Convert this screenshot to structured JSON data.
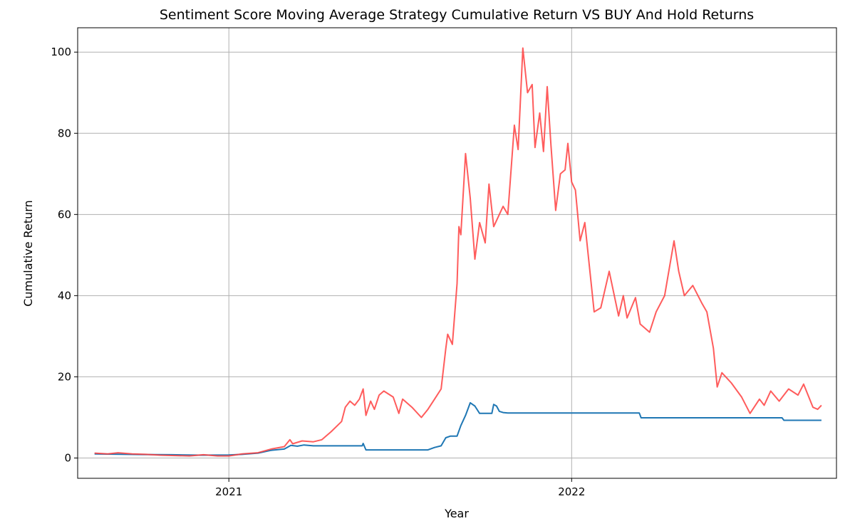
{
  "chart_data": {
    "type": "line",
    "title": "Sentiment Score Moving Average Strategy Cumulative Return VS BUY And Hold Returns",
    "xlabel": "Year",
    "ylabel": "Cumulative Return",
    "xlim": [
      "2020-07-24",
      "2022-10-10"
    ],
    "ylim": [
      -5,
      106
    ],
    "grid": true,
    "x_ticks": [
      {
        "value": "2021-01-01",
        "label": "2021"
      },
      {
        "value": "2022-01-01",
        "label": "2022"
      }
    ],
    "y_ticks": [
      0,
      20,
      40,
      60,
      80,
      100
    ],
    "series": [
      {
        "color": "#1f77b4",
        "points": [
          [
            "2020-08-11",
            1.0
          ],
          [
            "2020-09-01",
            0.95
          ],
          [
            "2020-10-01",
            0.85
          ],
          [
            "2020-11-01",
            0.8
          ],
          [
            "2020-12-01",
            0.7
          ],
          [
            "2021-01-01",
            0.75
          ],
          [
            "2021-01-15",
            0.9
          ],
          [
            "2021-02-01",
            1.2
          ],
          [
            "2021-02-15",
            1.9
          ],
          [
            "2021-03-01",
            2.2
          ],
          [
            "2021-03-08",
            3.1
          ],
          [
            "2021-03-15",
            2.9
          ],
          [
            "2021-03-22",
            3.2
          ],
          [
            "2021-04-01",
            3.0
          ],
          [
            "2021-05-23",
            3.0
          ],
          [
            "2021-05-24",
            3.6
          ],
          [
            "2021-05-27",
            2.0
          ],
          [
            "2021-08-01",
            2.0
          ],
          [
            "2021-08-08",
            2.6
          ],
          [
            "2021-08-15",
            3.0
          ],
          [
            "2021-08-20",
            5.0
          ],
          [
            "2021-08-25",
            5.4
          ],
          [
            "2021-09-01",
            5.4
          ],
          [
            "2021-09-05",
            8.0
          ],
          [
            "2021-09-10",
            10.5
          ],
          [
            "2021-09-15",
            13.6
          ],
          [
            "2021-09-20",
            12.8
          ],
          [
            "2021-09-25",
            11.0
          ],
          [
            "2021-10-01",
            11.0
          ],
          [
            "2021-10-08",
            11.0
          ],
          [
            "2021-10-10",
            13.2
          ],
          [
            "2021-10-13",
            12.8
          ],
          [
            "2021-10-16",
            11.5
          ],
          [
            "2021-10-20",
            11.2
          ],
          [
            "2021-10-25",
            11.1
          ],
          [
            "2022-03-14",
            11.1
          ],
          [
            "2022-03-16",
            9.9
          ],
          [
            "2022-08-13",
            9.9
          ],
          [
            "2022-08-15",
            9.3
          ],
          [
            "2022-09-24",
            9.3
          ]
        ]
      },
      {
        "color": "#ff4040",
        "points": [
          [
            "2020-08-11",
            1.2
          ],
          [
            "2020-08-25",
            1.0
          ],
          [
            "2020-09-05",
            1.3
          ],
          [
            "2020-09-20",
            1.0
          ],
          [
            "2020-10-05",
            0.9
          ],
          [
            "2020-10-20",
            0.7
          ],
          [
            "2020-11-05",
            0.6
          ],
          [
            "2020-11-20",
            0.5
          ],
          [
            "2020-12-05",
            0.8
          ],
          [
            "2020-12-20",
            0.5
          ],
          [
            "2021-01-01",
            0.5
          ],
          [
            "2021-01-15",
            1.0
          ],
          [
            "2021-02-01",
            1.3
          ],
          [
            "2021-02-15",
            2.2
          ],
          [
            "2021-03-01",
            2.8
          ],
          [
            "2021-03-07",
            4.5
          ],
          [
            "2021-03-10",
            3.5
          ],
          [
            "2021-03-20",
            4.2
          ],
          [
            "2021-04-01",
            4.0
          ],
          [
            "2021-04-10",
            4.5
          ],
          [
            "2021-04-20",
            6.5
          ],
          [
            "2021-05-01",
            9.0
          ],
          [
            "2021-05-05",
            12.5
          ],
          [
            "2021-05-10",
            14.0
          ],
          [
            "2021-05-15",
            13.0
          ],
          [
            "2021-05-20",
            14.5
          ],
          [
            "2021-05-24",
            17.0
          ],
          [
            "2021-05-27",
            10.5
          ],
          [
            "2021-06-01",
            14.0
          ],
          [
            "2021-06-05",
            12.0
          ],
          [
            "2021-06-10",
            15.5
          ],
          [
            "2021-06-15",
            16.5
          ],
          [
            "2021-06-25",
            15.0
          ],
          [
            "2021-07-01",
            11.0
          ],
          [
            "2021-07-05",
            14.5
          ],
          [
            "2021-07-15",
            12.5
          ],
          [
            "2021-07-25",
            10.0
          ],
          [
            "2021-08-01",
            12.0
          ],
          [
            "2021-08-08",
            14.5
          ],
          [
            "2021-08-15",
            17.0
          ],
          [
            "2021-08-20",
            27.0
          ],
          [
            "2021-08-22",
            30.5
          ],
          [
            "2021-08-27",
            28.0
          ],
          [
            "2021-09-01",
            43.0
          ],
          [
            "2021-09-03",
            57.0
          ],
          [
            "2021-09-05",
            55.0
          ],
          [
            "2021-09-10",
            75.0
          ],
          [
            "2021-09-15",
            64.0
          ],
          [
            "2021-09-20",
            49.0
          ],
          [
            "2021-09-25",
            58.0
          ],
          [
            "2021-10-01",
            53.0
          ],
          [
            "2021-10-05",
            67.5
          ],
          [
            "2021-10-10",
            57.0
          ],
          [
            "2021-10-20",
            62.0
          ],
          [
            "2021-10-25",
            60.0
          ],
          [
            "2021-11-01",
            82.0
          ],
          [
            "2021-11-05",
            76.0
          ],
          [
            "2021-11-10",
            101.0
          ],
          [
            "2021-11-15",
            90.0
          ],
          [
            "2021-11-20",
            92.0
          ],
          [
            "2021-11-23",
            76.5
          ],
          [
            "2021-11-28",
            85.0
          ],
          [
            "2021-12-02",
            75.5
          ],
          [
            "2021-12-06",
            91.5
          ],
          [
            "2021-12-10",
            77.0
          ],
          [
            "2021-12-15",
            61.0
          ],
          [
            "2021-12-20",
            70.0
          ],
          [
            "2021-12-25",
            71.0
          ],
          [
            "2021-12-28",
            77.5
          ],
          [
            "2022-01-01",
            68.0
          ],
          [
            "2022-01-05",
            66.0
          ],
          [
            "2022-01-10",
            53.5
          ],
          [
            "2022-01-15",
            58.0
          ],
          [
            "2022-01-25",
            36.0
          ],
          [
            "2022-02-01",
            37.0
          ],
          [
            "2022-02-10",
            46.0
          ],
          [
            "2022-02-20",
            35.0
          ],
          [
            "2022-02-25",
            40.0
          ],
          [
            "2022-03-01",
            34.5
          ],
          [
            "2022-03-10",
            39.5
          ],
          [
            "2022-03-15",
            33.0
          ],
          [
            "2022-03-25",
            31.0
          ],
          [
            "2022-04-01",
            36.0
          ],
          [
            "2022-04-10",
            40.0
          ],
          [
            "2022-04-20",
            53.5
          ],
          [
            "2022-04-25",
            46.0
          ],
          [
            "2022-05-01",
            40.0
          ],
          [
            "2022-05-10",
            42.5
          ],
          [
            "2022-05-20",
            38.0
          ],
          [
            "2022-05-25",
            36.0
          ],
          [
            "2022-06-01",
            27.0
          ],
          [
            "2022-06-05",
            17.5
          ],
          [
            "2022-06-10",
            21.0
          ],
          [
            "2022-06-20",
            18.5
          ],
          [
            "2022-07-01",
            15.0
          ],
          [
            "2022-07-10",
            11.0
          ],
          [
            "2022-07-20",
            14.5
          ],
          [
            "2022-07-25",
            13.0
          ],
          [
            "2022-08-01",
            16.5
          ],
          [
            "2022-08-10",
            14.0
          ],
          [
            "2022-08-20",
            17.0
          ],
          [
            "2022-08-30",
            15.5
          ],
          [
            "2022-09-05",
            18.2
          ],
          [
            "2022-09-15",
            12.5
          ],
          [
            "2022-09-20",
            12.0
          ],
          [
            "2022-09-24",
            13.0
          ]
        ]
      }
    ]
  }
}
